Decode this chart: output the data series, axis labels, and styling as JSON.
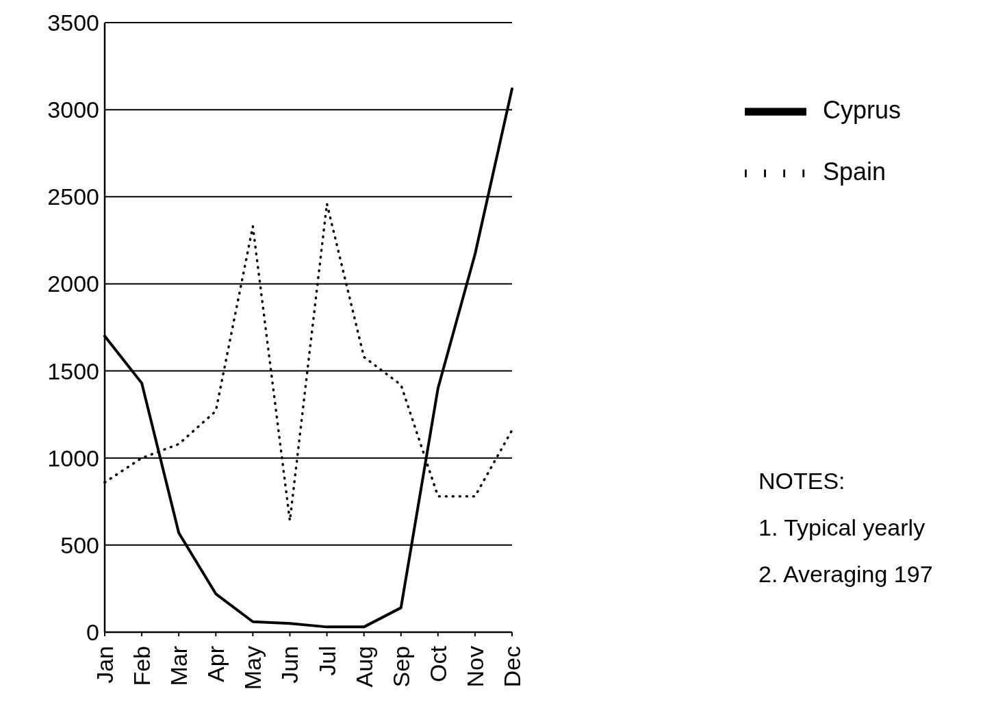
{
  "chart_data": {
    "type": "line",
    "categories": [
      "Jan",
      "Feb",
      "Mar",
      "Apr",
      "May",
      "Jun",
      "Jul",
      "Aug",
      "Sep",
      "Oct",
      "Nov",
      "Dec"
    ],
    "series": [
      {
        "name": "Cyprus",
        "color": "#000000",
        "line_style": "solid",
        "values": [
          1700,
          1430,
          570,
          220,
          60,
          50,
          30,
          30,
          140,
          1400,
          2170,
          3120
        ]
      },
      {
        "name": "Spain",
        "color": "#000000",
        "line_style": "dotted",
        "values": [
          860,
          1000,
          1080,
          1270,
          2330,
          640,
          2460,
          1580,
          1420,
          780,
          780,
          1160
        ]
      }
    ],
    "ylim": [
      0,
      3500
    ],
    "yticks": [
      0,
      500,
      1000,
      1500,
      2000,
      2500,
      3000,
      3500
    ],
    "grid": "y",
    "legend": "top right",
    "annotations": [
      "NOTES:",
      "1. Typical yearly",
      "2. Averaging 197"
    ]
  }
}
